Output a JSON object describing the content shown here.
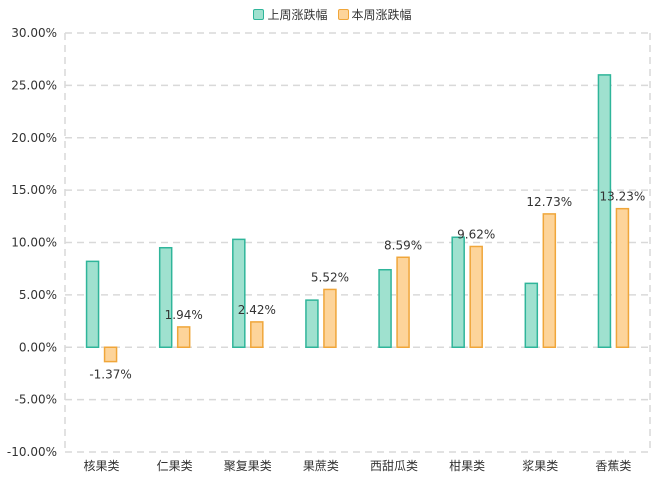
{
  "chart_data": {
    "type": "bar",
    "categories": [
      "核果类",
      "仁果类",
      "聚复果类",
      "果蔗类",
      "西甜瓜类",
      "柑果类",
      "浆果类",
      "香蕉类"
    ],
    "series": [
      {
        "name": "上周涨跌幅",
        "values": [
          8.2,
          9.5,
          10.3,
          4.5,
          7.4,
          10.5,
          6.1,
          26.0
        ],
        "fill": "#9fe1cf",
        "stroke": "#2fb59a",
        "labels": [
          "",
          "",
          "",
          "",
          "",
          "",
          "",
          ""
        ]
      },
      {
        "name": "本周涨跌幅",
        "values": [
          -1.37,
          1.94,
          2.42,
          5.52,
          8.59,
          9.62,
          12.73,
          13.23
        ],
        "fill": "#fdd49a",
        "stroke": "#f0a63a",
        "labels": [
          "-1.37%",
          "1.94%",
          "2.42%",
          "5.52%",
          "8.59%",
          "9.62%",
          "12.73%",
          "13.23%"
        ]
      }
    ],
    "ylim": [
      -10,
      30
    ],
    "yticks": [
      -10,
      -5,
      0,
      5,
      10,
      15,
      20,
      25,
      30
    ],
    "ytick_labels": [
      "-10.00%",
      "-5.00%",
      "0.00%",
      "5.00%",
      "10.00%",
      "15.00%",
      "20.00%",
      "25.00%",
      "30.00%"
    ],
    "grid": true,
    "legend": "top-center",
    "title": "",
    "xlabel": "",
    "ylabel": ""
  }
}
